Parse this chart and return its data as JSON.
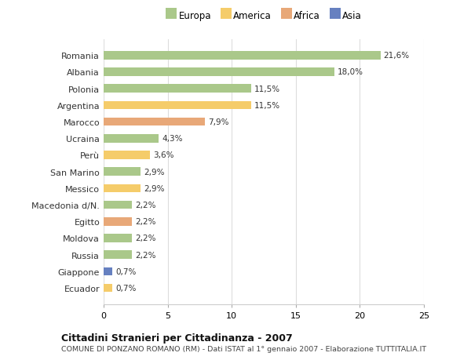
{
  "categories": [
    "Romania",
    "Albania",
    "Polonia",
    "Argentina",
    "Marocco",
    "Ucraina",
    "Perù",
    "San Marino",
    "Messico",
    "Macedonia d/N.",
    "Egitto",
    "Moldova",
    "Russia",
    "Giappone",
    "Ecuador"
  ],
  "values": [
    21.6,
    18.0,
    11.5,
    11.5,
    7.9,
    4.3,
    3.6,
    2.9,
    2.9,
    2.2,
    2.2,
    2.2,
    2.2,
    0.7,
    0.7
  ],
  "labels": [
    "21,6%",
    "18,0%",
    "11,5%",
    "11,5%",
    "7,9%",
    "4,3%",
    "3,6%",
    "2,9%",
    "2,9%",
    "2,2%",
    "2,2%",
    "2,2%",
    "2,2%",
    "0,7%",
    "0,7%"
  ],
  "continents": [
    "Europa",
    "Europa",
    "Europa",
    "America",
    "Africa",
    "Europa",
    "America",
    "Europa",
    "America",
    "Europa",
    "Africa",
    "Europa",
    "Europa",
    "Asia",
    "America"
  ],
  "colors": {
    "Europa": "#aac88a",
    "America": "#f5cc6a",
    "Africa": "#e8a878",
    "Asia": "#6680c0"
  },
  "legend_order": [
    "Europa",
    "America",
    "Africa",
    "Asia"
  ],
  "legend_colors": [
    "#aac88a",
    "#f5cc6a",
    "#e8a878",
    "#6680c0"
  ],
  "xlim": [
    0,
    25
  ],
  "xticks": [
    0,
    5,
    10,
    15,
    20,
    25
  ],
  "title": "Cittadini Stranieri per Cittadinanza - 2007",
  "subtitle": "COMUNE DI PONZANO ROMANO (RM) - Dati ISTAT al 1° gennaio 2007 - Elaborazione TUTTITALIA.IT",
  "bg_color": "#ffffff",
  "grid_color": "#dddddd",
  "bar_height": 0.5
}
